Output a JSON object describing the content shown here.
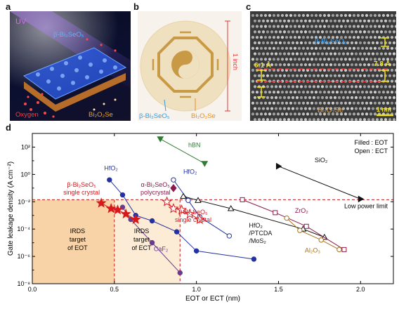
{
  "panels": {
    "a": {
      "label": "a",
      "uv_label": "UV",
      "material_label_html": "β-Bi₂SeO₅",
      "substrate_label": "Bi₂O₂Se",
      "oxygen_label": "Oxygen",
      "colors": {
        "uv": "#d36cf0",
        "material": "#59b7ff",
        "substrate": "#e3a23b",
        "oxygen": "#ff3b3b"
      }
    },
    "b": {
      "label": "b",
      "scale_label": "1 inch",
      "material_label": "β-Bi₂SeO₅",
      "substrate_label": "Bi₂O₂Se",
      "colors": {
        "material": "#2f9be0",
        "substrate": "#e3902a",
        "scale": "#e23a3a"
      }
    },
    "c": {
      "label": "c",
      "material_label": "β-Bi₂SeO₅",
      "substrate_label": "Bi₂O₂Se",
      "spacing_left": "6.1 Å",
      "spacing_right": "7.8 Å",
      "scalebar_label": "1 nm",
      "colors": {
        "material": "#38a8ff",
        "substrate": "#e3a23b",
        "marker": "#f3e51b",
        "dash": "#ff2a2a"
      }
    },
    "d": {
      "label": "d",
      "legend": {
        "filled": "Filled : EOT",
        "open": "Open : ECT"
      },
      "low_power_limit": "Low power limit",
      "irds_eot": [
        "IRDS",
        "target",
        "of EOT"
      ],
      "irds_ect": [
        "IRDS",
        "target",
        "of ECT"
      ]
    }
  },
  "chart_data": {
    "type": "scatter",
    "xlabel": "EOT or ECT (nm)",
    "ylabel": "Gate leakage density (A cm⁻²)",
    "xlim": [
      0,
      2.2
    ],
    "ylim_log10": [
      -8,
      3
    ],
    "x_ticks": [
      "0.0",
      "0.5",
      "1.0",
      "1.5",
      "2.0"
    ],
    "x_tick_values": [
      0,
      0.5,
      1.0,
      1.5,
      2.0
    ],
    "y_ticks": [
      "10²",
      "10⁰",
      "10⁻²",
      "10⁻⁴",
      "10⁻⁶",
      "10⁻⁸"
    ],
    "y_tick_exponents": [
      2,
      0,
      -2,
      -4,
      -6,
      -8
    ],
    "low_power_limit_log10": -1.85,
    "irds_eot_x": 0.5,
    "irds_ect_x": 0.9,
    "series": [
      {
        "name": "hBN",
        "label": "hBN",
        "color": "#2e7d32",
        "marker": "triangle-down",
        "filled": true,
        "x": [
          0.78,
          1.05
        ],
        "y_log10": [
          2.6,
          0.8
        ]
      },
      {
        "name": "SiO₂",
        "label": "SiO₂",
        "color": "#111111",
        "marker": "triangle-right",
        "filled": true,
        "x": [
          1.5,
          2.0
        ],
        "y_log10": [
          0.6,
          -1.8
        ]
      },
      {
        "name": "HfO₂",
        "label": "HfO₂",
        "color": "#2432a0",
        "marker": "circle",
        "filled": true,
        "x": [
          0.47,
          0.55,
          0.63,
          0.73,
          0.88,
          1.0,
          1.35
        ],
        "y_log10": [
          -0.4,
          -1.5,
          -3.0,
          -3.4,
          -4.2,
          -5.6,
          -6.2
        ]
      },
      {
        "name": "CaF₂",
        "label": "CaF₂",
        "color": "#6a3a8f",
        "marker": "circle",
        "filled": true,
        "x": [
          0.55,
          0.6,
          0.73,
          0.9
        ],
        "y_log10": [
          -2.4,
          -3.3,
          -5.0,
          -7.2
        ]
      },
      {
        "name": "HfO₂ (open)",
        "label": "HfO₂",
        "color": "#2432a0",
        "marker": "circle",
        "filled": false,
        "x": [
          0.86,
          0.95,
          1.02,
          1.2
        ],
        "y_log10": [
          -0.4,
          -1.9,
          -3.1,
          -4.5
        ]
      },
      {
        "name": "β-Bi₂SeO₅ single crystal (EOT)",
        "label": "β-Bi₂SeO₅",
        "label2": "single crystal",
        "color": "#d7191c",
        "marker": "star",
        "filled": true,
        "x": [
          0.42,
          0.48,
          0.52,
          0.57,
          0.63
        ],
        "y_log10": [
          -2.1,
          -2.5,
          -2.6,
          -2.9,
          -3.3
        ]
      },
      {
        "name": "β-Bi₂SeO₅ single crystal (ECT)",
        "label": "β-Bi₂SeO₅",
        "label2": "single crystal",
        "color": "#d7191c",
        "marker": "star",
        "filled": false,
        "x": [
          0.82,
          0.86,
          0.91,
          0.96,
          1.02
        ],
        "y_log10": [
          -2.0,
          -2.5,
          -2.6,
          -2.9,
          -3.3
        ]
      },
      {
        "name": "α-Bi₂SeO₅ polycrystal",
        "label": "α-Bi₂SeO₅",
        "label2": "polycrystal",
        "color": "#8b1a4a",
        "marker": "diamond",
        "filled": true,
        "x": [
          0.86
        ],
        "y_log10": [
          -1.0
        ]
      },
      {
        "name": "HfO₂/PTCDA/MoS₂",
        "label": "HfO₂",
        "label2": "/PTCDA",
        "label3": "/MoS₂",
        "color": "#111111",
        "marker": "triangle-up",
        "filled": false,
        "x": [
          0.92,
          1.01,
          1.21,
          1.65,
          1.78
        ],
        "y_log10": [
          -1.6,
          -1.9,
          -2.5,
          -4.0,
          -4.6
        ]
      },
      {
        "name": "ZrO₂",
        "label": "ZrO₂",
        "color": "#8b1a4a",
        "marker": "square",
        "filled": false,
        "x": [
          1.28,
          1.48,
          1.67,
          1.9
        ],
        "y_log10": [
          -1.85,
          -2.8,
          -3.8,
          -5.5
        ]
      },
      {
        "name": "Al₂O₃",
        "label": "Al₂O₃",
        "color": "#a8731c",
        "marker": "circle",
        "filled": false,
        "x": [
          1.55,
          1.63,
          1.76,
          1.87
        ],
        "y_log10": [
          -3.2,
          -4.1,
          -4.8,
          -5.5
        ]
      }
    ]
  }
}
